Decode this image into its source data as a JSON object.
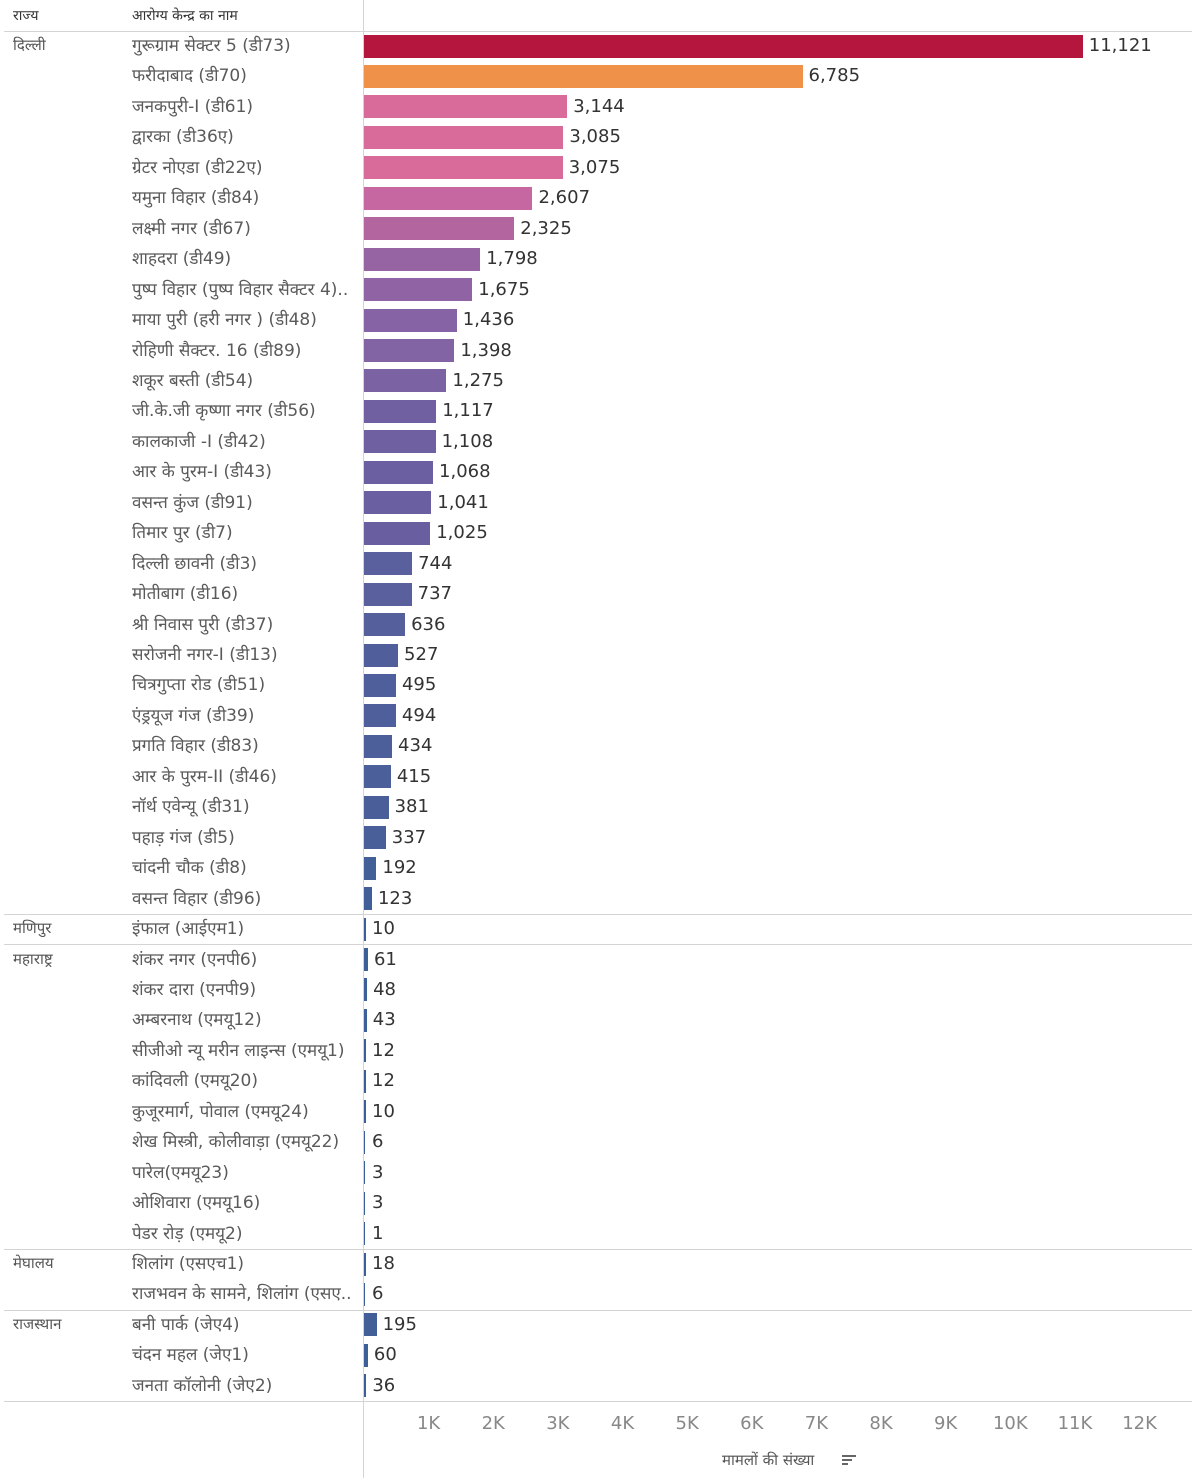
{
  "header": {
    "state_col": "राज्य",
    "center_col": "आरोग्य केन्द्र का नाम"
  },
  "axis": {
    "title": "मामलों की संख्या",
    "ticks": [
      "1K",
      "2K",
      "3K",
      "4K",
      "5K",
      "6K",
      "7K",
      "8K",
      "9K",
      "10K",
      "11K",
      "12K"
    ]
  },
  "chart_data": {
    "type": "bar",
    "orientation": "horizontal",
    "xlabel": "मामलों की संख्या",
    "xlim": [
      0,
      12500
    ],
    "groups": [
      {
        "state": "दिल्ली",
        "rows": [
          {
            "label": "गुरूग्राम सेक्टर 5 (डी73)",
            "value": 11121,
            "display": "11,121",
            "color": "#b5163d"
          },
          {
            "label": "फरीदाबाद (डी70)",
            "value": 6785,
            "display": "6,785",
            "color": "#f0914a"
          },
          {
            "label": "जनकपुरी-I (डी61)",
            "value": 3144,
            "display": "3,144",
            "color": "#d86b99"
          },
          {
            "label": "द्वारका (डी36ए)",
            "value": 3085,
            "display": "3,085",
            "color": "#d86b99"
          },
          {
            "label": "ग्रेटर नोएडा (डी22ए)",
            "value": 3075,
            "display": "3,075",
            "color": "#d86b99"
          },
          {
            "label": "यमुना विहार (डी84)",
            "value": 2607,
            "display": "2,607",
            "color": "#c767a2"
          },
          {
            "label": "लक्ष्मी नगर (डी67)",
            "value": 2325,
            "display": "2,325",
            "color": "#b3659f"
          },
          {
            "label": "शाहदरा (डी49)",
            "value": 1798,
            "display": "1,798",
            "color": "#9664a3"
          },
          {
            "label": "पुष्प विहार (पुष्प विहार सैक्टर 4)..",
            "value": 1675,
            "display": "1,675",
            "color": "#9064a4"
          },
          {
            "label": "माया पुरी (हरी नगर ) (डी48)",
            "value": 1436,
            "display": "1,436",
            "color": "#8563a4"
          },
          {
            "label": "रोहिणी सैक्टर. 16 (डी89)",
            "value": 1398,
            "display": "1,398",
            "color": "#8263a4"
          },
          {
            "label": "शकूर बस्ती (डी54)",
            "value": 1275,
            "display": "1,275",
            "color": "#7a62a3"
          },
          {
            "label": "जी.के.जी कृष्णा नगर (डी56)",
            "value": 1117,
            "display": "1,117",
            "color": "#7060a1"
          },
          {
            "label": "कालकाजी -I (डी42)",
            "value": 1108,
            "display": "1,108",
            "color": "#6f60a1"
          },
          {
            "label": "आर के पुरम-I (डी43)",
            "value": 1068,
            "display": "1,068",
            "color": "#6c5fa1"
          },
          {
            "label": "वसन्त कुंज (डी91)",
            "value": 1041,
            "display": "1,041",
            "color": "#6a5fa0"
          },
          {
            "label": "तिमार पुर (डी7)",
            "value": 1025,
            "display": "1,025",
            "color": "#695fa0"
          },
          {
            "label": "दिल्ली छावनी (डी3)",
            "value": 744,
            "display": "744",
            "color": "#5a5f9d"
          },
          {
            "label": "मोतीबाग (डी16)",
            "value": 737,
            "display": "737",
            "color": "#5a5f9d"
          },
          {
            "label": "श्री निवास पुरी (डी37)",
            "value": 636,
            "display": "636",
            "color": "#555f9c"
          },
          {
            "label": "सरोजनी नगर-I (डी13)",
            "value": 527,
            "display": "527",
            "color": "#505f9b"
          },
          {
            "label": "चित्रगुप्ता रोड (डी51)",
            "value": 495,
            "display": "495",
            "color": "#4f5f9b"
          },
          {
            "label": "एंड्रयूज गंज (डी39)",
            "value": 494,
            "display": "494",
            "color": "#4f5f9b"
          },
          {
            "label": "प्रगति विहार (डी83)",
            "value": 434,
            "display": "434",
            "color": "#4c5f9a"
          },
          {
            "label": "आर के पुरम-II (डी46)",
            "value": 415,
            "display": "415",
            "color": "#4b5f9a"
          },
          {
            "label": "नॉर्थ एवेन्यू (डी31)",
            "value": 381,
            "display": "381",
            "color": "#4a5f9a"
          },
          {
            "label": "पहाड़ गंज (डी5)",
            "value": 337,
            "display": "337",
            "color": "#485f99"
          },
          {
            "label": "चांदनी चौक (डी8)",
            "value": 192,
            "display": "192",
            "color": "#425f98"
          },
          {
            "label": "वसन्त विहार (डी96)",
            "value": 123,
            "display": "123",
            "color": "#405f98"
          }
        ]
      },
      {
        "state": "मणिपुर",
        "rows": [
          {
            "label": "इंफाल (आईएम1)",
            "value": 10,
            "display": "10",
            "color": "#3d5f97"
          }
        ]
      },
      {
        "state": "महाराष्ट्र",
        "rows": [
          {
            "label": "शंकर नगर (एनपी6)",
            "value": 61,
            "display": "61",
            "color": "#3d5f97"
          },
          {
            "label": "शंकर दारा (एनपी9)",
            "value": 48,
            "display": "48",
            "color": "#3d5f97"
          },
          {
            "label": "अम्बरनाथ (एमयू12)",
            "value": 43,
            "display": "43",
            "color": "#3d5f97"
          },
          {
            "label": "सीजीओ न्यू मरीन लाइन्स (एमयू1)",
            "value": 12,
            "display": "12",
            "color": "#3d5f97"
          },
          {
            "label": "कांदिवली (एमयू20)",
            "value": 12,
            "display": "12",
            "color": "#3d5f97"
          },
          {
            "label": "कुजूरमार्ग, पोवाल (एमयू24)",
            "value": 10,
            "display": "10",
            "color": "#3d5f97"
          },
          {
            "label": "शेख मिस्त्री, कोलीवाड़ा (एमयू22)",
            "value": 6,
            "display": "6",
            "color": "#3d5f97"
          },
          {
            "label": "पारेल(एमयू23)",
            "value": 3,
            "display": "3",
            "color": "#3d5f97"
          },
          {
            "label": "ओशिवारा (एमयू16)",
            "value": 3,
            "display": "3",
            "color": "#3d5f97"
          },
          {
            "label": "पेडर रोड़ (एमयू2)",
            "value": 1,
            "display": "1",
            "color": "#3d5f97"
          }
        ]
      },
      {
        "state": "मेघालय",
        "rows": [
          {
            "label": "शिलांग (एसएच1)",
            "value": 18,
            "display": "18",
            "color": "#3d5f97"
          },
          {
            "label": "राजभवन के सामने, शिलांग (एसए..",
            "value": 6,
            "display": "6",
            "color": "#3d5f97"
          }
        ]
      },
      {
        "state": "राजस्थान",
        "rows": [
          {
            "label": "बनी पार्क (जेए4)",
            "value": 195,
            "display": "195",
            "color": "#425f98"
          },
          {
            "label": "चंदन महल (जेए1)",
            "value": 60,
            "display": "60",
            "color": "#3d5f97"
          },
          {
            "label": "जनता कॉलोनी (जेए2)",
            "value": 36,
            "display": "36",
            "color": "#3d5f97"
          }
        ]
      }
    ]
  }
}
